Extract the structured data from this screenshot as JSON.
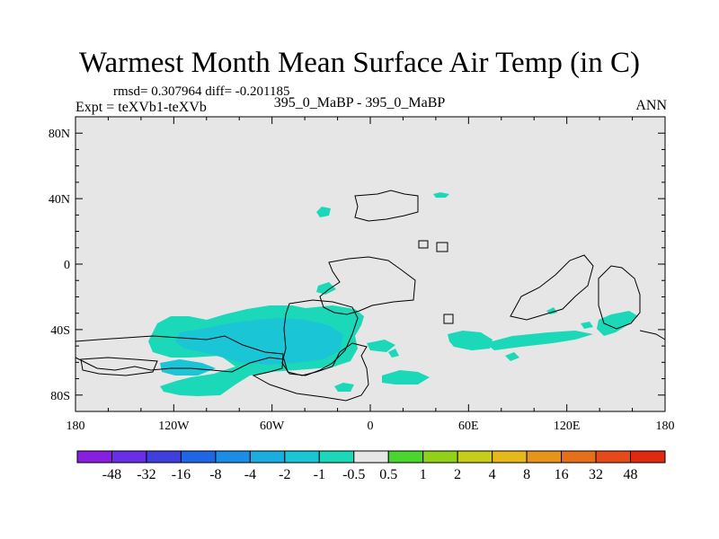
{
  "title": "Warmest Month Mean Surface Air Temp (in C)",
  "stats": "rmsd= 0.307964 diff= -0.201185",
  "expt": "Expt = teXVb1-teXVb",
  "case": "395_0_MaBP - 395_0_MaBP",
  "season": "ANN",
  "map_data": {
    "projection": "cylindrical-equidistant",
    "lon_range": [
      -180,
      180
    ],
    "lat_range": [
      -90,
      90
    ],
    "lat_ticks": [
      {
        "value": 80,
        "label": "80N"
      },
      {
        "value": 40,
        "label": "40N"
      },
      {
        "value": 0,
        "label": "0"
      },
      {
        "value": -40,
        "label": "40S"
      },
      {
        "value": -80,
        "label": "80S"
      }
    ],
    "lon_ticks": [
      {
        "value": -180,
        "label": "180"
      },
      {
        "value": -120,
        "label": "120W"
      },
      {
        "value": -60,
        "label": "60W"
      },
      {
        "value": 0,
        "label": "0"
      },
      {
        "value": 60,
        "label": "60E"
      },
      {
        "value": 120,
        "label": "120E"
      },
      {
        "value": 180,
        "label": "180"
      }
    ],
    "anomaly_field_note": "small negative anomalies (-2 to -0.5) mostly over southern hemisphere ocean"
  },
  "colorbar": {
    "labels": [
      "-48",
      "-32",
      "-16",
      "-8",
      "-4",
      "-2",
      "-1",
      "-0.5",
      "0.5",
      "1",
      "2",
      "4",
      "8",
      "16",
      "32",
      "48"
    ],
    "colors": [
      "#8a1ee0",
      "#6a2ee6",
      "#3f3fe0",
      "#1e66e6",
      "#1a8de6",
      "#1aaee0",
      "#1ac6d6",
      "#1ad8b8",
      "#e6e6e6",
      "#4ad62e",
      "#92d11a",
      "#c8cc1a",
      "#e6b81a",
      "#e6951a",
      "#e6701a",
      "#e64a1a",
      "#e02a10"
    ]
  }
}
